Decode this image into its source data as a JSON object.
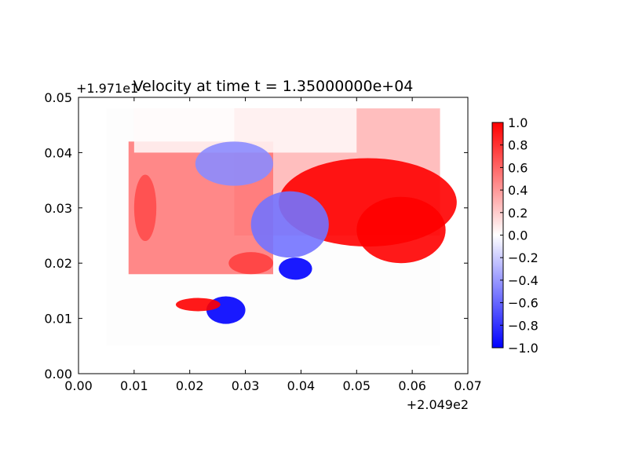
{
  "chart_data": {
    "type": "heatmap",
    "title": "Velocity at time t = 1.35000000e+04",
    "xlabel": "",
    "ylabel": "",
    "x_offset_label": "+2.049e2",
    "y_offset_label": "+1.971e1",
    "xlim": [
      0.0,
      0.07
    ],
    "ylim": [
      0.0,
      0.05
    ],
    "x_ticks": [
      {
        "value": 0.0,
        "label": "0.00"
      },
      {
        "value": 0.01,
        "label": "0.01"
      },
      {
        "value": 0.02,
        "label": "0.02"
      },
      {
        "value": 0.03,
        "label": "0.03"
      },
      {
        "value": 0.04,
        "label": "0.04"
      },
      {
        "value": 0.05,
        "label": "0.05"
      },
      {
        "value": 0.06,
        "label": "0.06"
      },
      {
        "value": 0.07,
        "label": "0.07"
      }
    ],
    "y_ticks": [
      {
        "value": 0.0,
        "label": "0.00"
      },
      {
        "value": 0.01,
        "label": "0.01"
      },
      {
        "value": 0.02,
        "label": "0.02"
      },
      {
        "value": 0.03,
        "label": "0.03"
      },
      {
        "value": 0.04,
        "label": "0.04"
      },
      {
        "value": 0.05,
        "label": "0.05"
      }
    ],
    "colormap": "bwr",
    "color_low": "#0000ff",
    "color_mid": "#ffffff",
    "color_high": "#ff0000",
    "clim": [
      -1.0,
      1.0
    ],
    "colorbar_ticks": [
      {
        "value": 1.0,
        "label": "1.0"
      },
      {
        "value": 0.8,
        "label": "0.8"
      },
      {
        "value": 0.6,
        "label": "0.6"
      },
      {
        "value": 0.4,
        "label": "0.4"
      },
      {
        "value": 0.2,
        "label": "0.2"
      },
      {
        "value": 0.0,
        "label": "0.0"
      },
      {
        "value": -0.2,
        "label": "−0.2"
      },
      {
        "value": -0.4,
        "label": "−0.4"
      },
      {
        "value": -0.6,
        "label": "−0.6"
      },
      {
        "value": -0.8,
        "label": "−0.8"
      },
      {
        "value": -1.0,
        "label": "−1.0"
      }
    ],
    "field_extent": {
      "x": [
        0.005,
        0.065
      ],
      "y": [
        0.005,
        0.048
      ]
    },
    "regions": [
      {
        "name": "ne-offshore-gradient",
        "kind": "rect",
        "x": [
          0.028,
          0.065
        ],
        "y": [
          0.025,
          0.048
        ],
        "value": 0.3
      },
      {
        "name": "west-peninsula",
        "kind": "rect",
        "x": [
          0.009,
          0.035
        ],
        "y": [
          0.018,
          0.042
        ],
        "value": 0.55
      },
      {
        "name": "north-white-zone",
        "kind": "rect",
        "x": [
          0.01,
          0.05
        ],
        "y": [
          0.04,
          0.048
        ],
        "value": 0.02
      },
      {
        "name": "east-red-jet",
        "kind": "ellipse",
        "cx": 0.052,
        "cy": 0.031,
        "rx": 0.016,
        "ry": 0.008,
        "value": 1.0
      },
      {
        "name": "east-red-tail",
        "kind": "ellipse",
        "cx": 0.058,
        "cy": 0.026,
        "rx": 0.008,
        "ry": 0.006,
        "value": 1.0
      },
      {
        "name": "north-blue-patch",
        "kind": "ellipse",
        "cx": 0.028,
        "cy": 0.038,
        "rx": 0.007,
        "ry": 0.004,
        "value": -0.45
      },
      {
        "name": "bay-blue-zone",
        "kind": "ellipse",
        "cx": 0.038,
        "cy": 0.027,
        "rx": 0.007,
        "ry": 0.006,
        "value": -0.55
      },
      {
        "name": "bay-entrance-blue",
        "kind": "ellipse",
        "cx": 0.039,
        "cy": 0.019,
        "rx": 0.003,
        "ry": 0.002,
        "value": -1.0
      },
      {
        "name": "south-blue-pocket",
        "kind": "ellipse",
        "cx": 0.0265,
        "cy": 0.0115,
        "rx": 0.0035,
        "ry": 0.0025,
        "value": -1.0
      },
      {
        "name": "south-red-strip",
        "kind": "ellipse",
        "cx": 0.0215,
        "cy": 0.0125,
        "rx": 0.004,
        "ry": 0.0012,
        "value": 1.0
      },
      {
        "name": "channel-red",
        "kind": "ellipse",
        "cx": 0.031,
        "cy": 0.02,
        "rx": 0.004,
        "ry": 0.002,
        "value": 0.75
      },
      {
        "name": "west-coast-red",
        "kind": "ellipse",
        "cx": 0.012,
        "cy": 0.03,
        "rx": 0.002,
        "ry": 0.006,
        "value": 0.7
      }
    ]
  }
}
